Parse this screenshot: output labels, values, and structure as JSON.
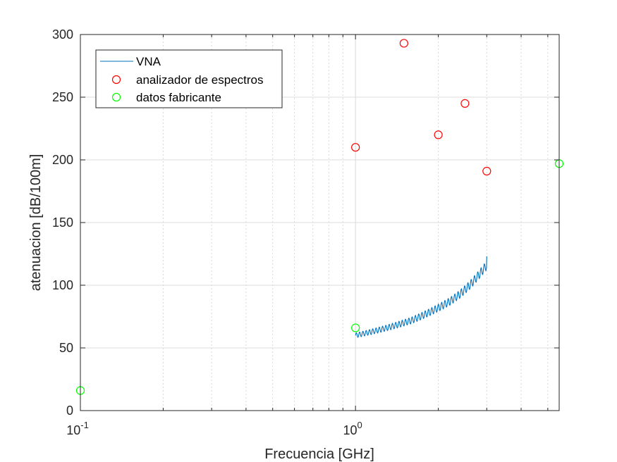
{
  "chart_data": {
    "type": "scatter",
    "xlabel": "Frecuencia [GHz]",
    "ylabel": "atenuacion [dB/100m]",
    "xscale": "log",
    "xlim": [
      0.1,
      5.5
    ],
    "ylim": [
      0,
      300
    ],
    "xticks": [
      {
        "value": 0.1,
        "base": "10",
        "exp": "-1"
      },
      {
        "value": 1,
        "base": "10",
        "exp": "0"
      }
    ],
    "yticks": [
      "0",
      "50",
      "100",
      "150",
      "200",
      "250",
      "300"
    ],
    "grid": true,
    "legend_placement": "top-left",
    "series": [
      {
        "name": "VNA",
        "kind": "line",
        "color": "#0072BD",
        "x_start": 1.0,
        "x_end": 3.0,
        "trend": [
          [
            1.0,
            60
          ],
          [
            1.2,
            64
          ],
          [
            1.4,
            68
          ],
          [
            1.6,
            72
          ],
          [
            1.8,
            77
          ],
          [
            2.0,
            82
          ],
          [
            2.2,
            87
          ],
          [
            2.4,
            93
          ],
          [
            2.6,
            100
          ],
          [
            2.8,
            108
          ],
          [
            3.0,
            116
          ]
        ],
        "ripple_amplitude": 3.5,
        "ripple_count": 40,
        "end_values": [
          60,
          123
        ]
      },
      {
        "name": "analizador de espectros",
        "kind": "marker",
        "marker": "circle",
        "color": "#FF0000",
        "points": [
          [
            1.0,
            210
          ],
          [
            1.5,
            293
          ],
          [
            2.0,
            220
          ],
          [
            2.5,
            245
          ],
          [
            3.0,
            191
          ]
        ]
      },
      {
        "name": "datos fabricante",
        "kind": "marker",
        "marker": "circle",
        "color": "#00FF00",
        "points": [
          [
            0.1,
            16
          ],
          [
            1.0,
            66
          ],
          [
            5.5,
            197
          ]
        ]
      }
    ]
  }
}
